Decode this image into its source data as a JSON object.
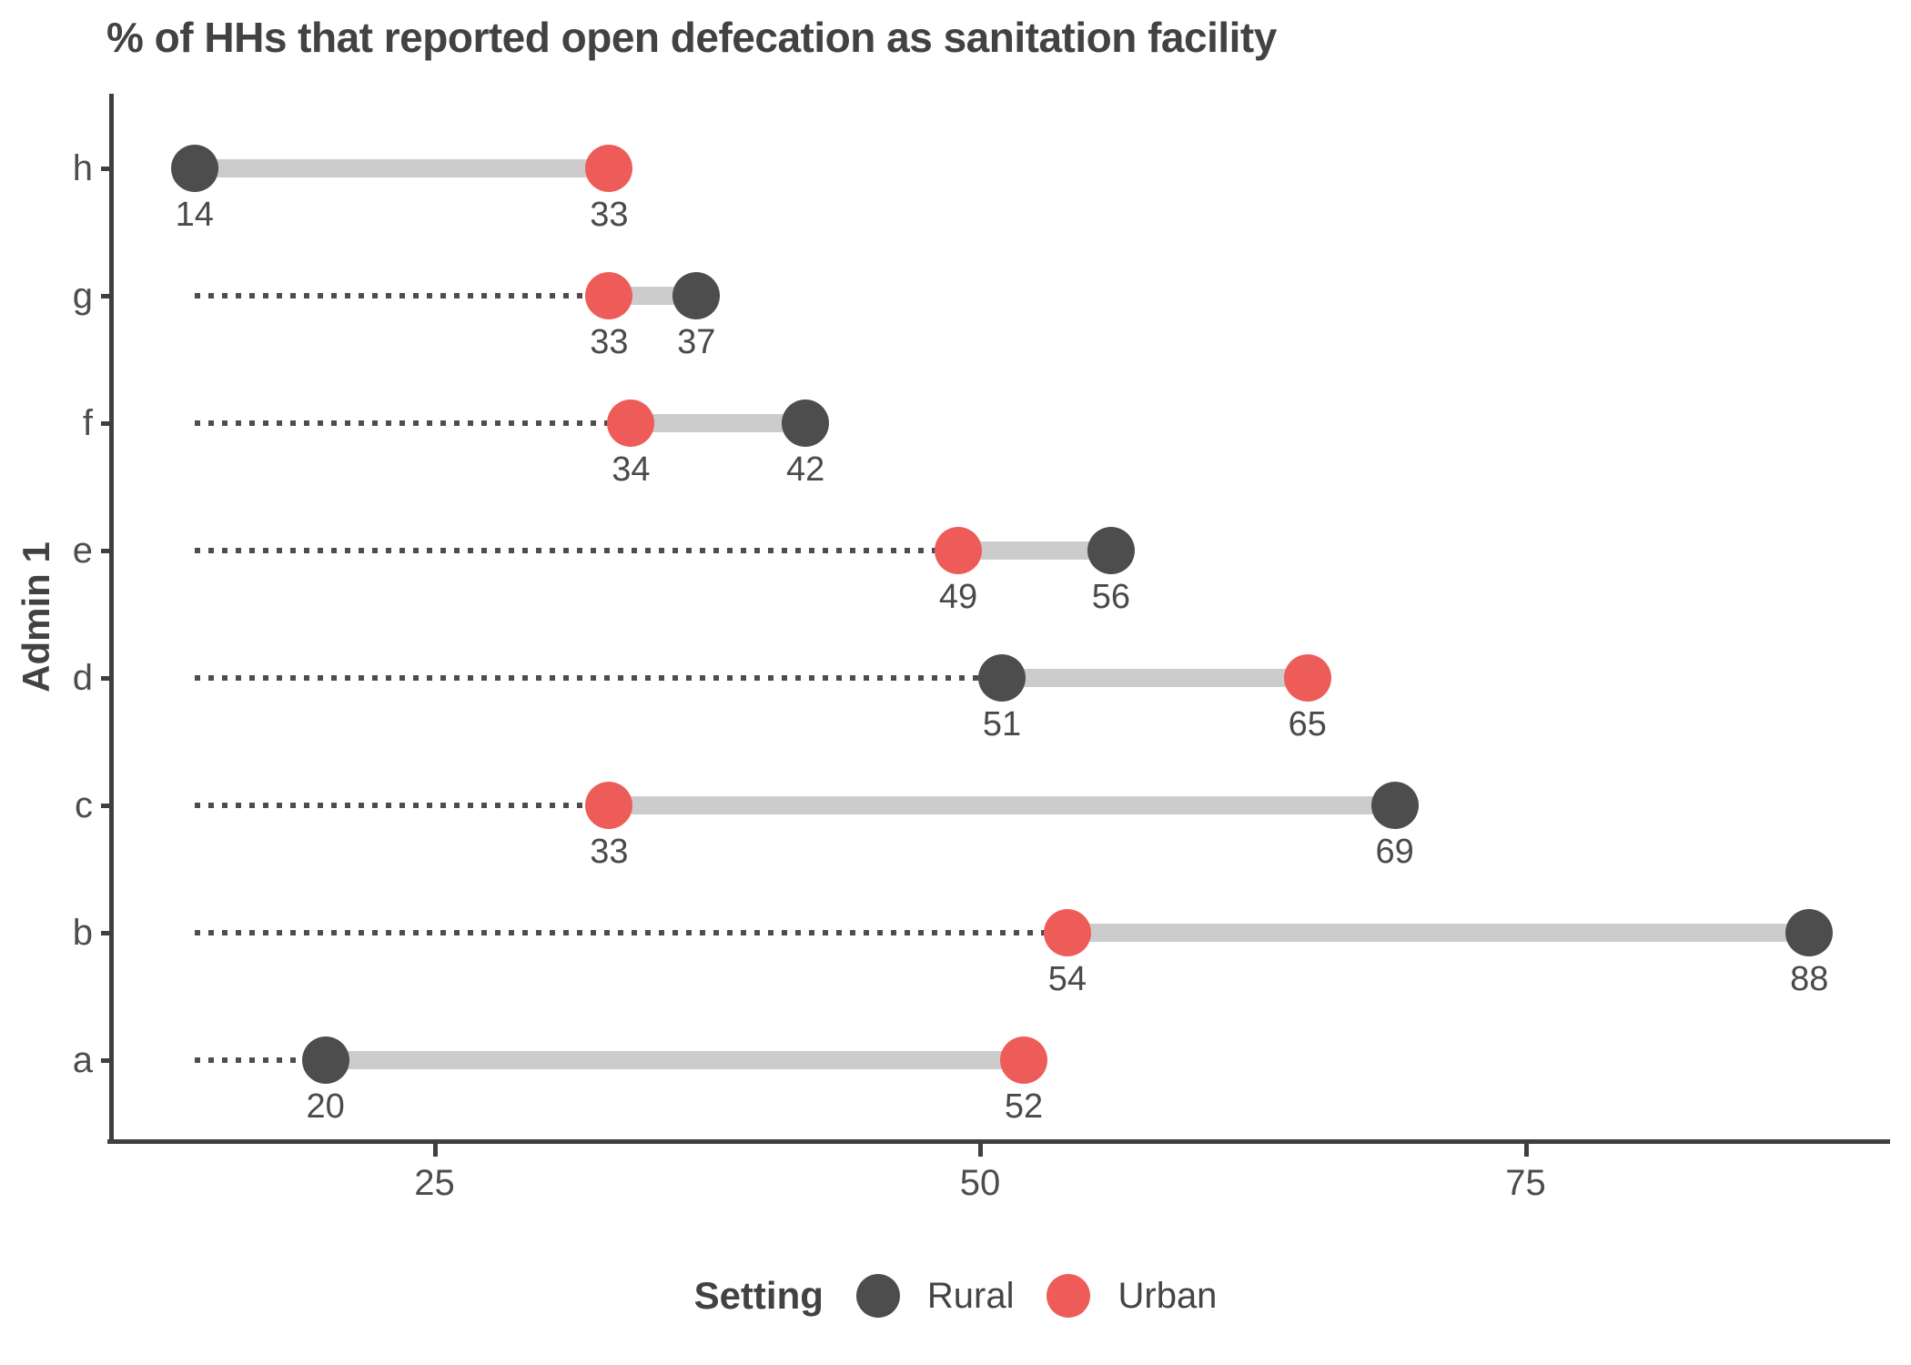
{
  "chart_data": {
    "type": "dumbbell",
    "title": "% of HHs that reported open defecation as sanitation facility",
    "ylabel": "Admin 1",
    "xlabel": "",
    "categories": [
      "h",
      "g",
      "f",
      "e",
      "d",
      "c",
      "b",
      "a"
    ],
    "series": [
      {
        "name": "Rural",
        "color": "#4d4d4d",
        "values": [
          14,
          37,
          42,
          56,
          51,
          69,
          88,
          20
        ]
      },
      {
        "name": "Urban",
        "color": "#ee5c5a",
        "values": [
          33,
          33,
          34,
          49,
          65,
          33,
          54,
          52
        ]
      }
    ],
    "point_labels": {
      "h": {
        "Rural": "14",
        "Urban": "33"
      },
      "g": {
        "Rural": "37",
        "Urban": "33"
      },
      "f": {
        "Rural": "42",
        "Urban": "34"
      },
      "e": {
        "Rural": "56",
        "Urban": "49"
      },
      "d": {
        "Rural": "51",
        "Urban": "65"
      },
      "c": {
        "Rural": "69",
        "Urban": "33"
      },
      "b": {
        "Rural": "88",
        "Urban": "54"
      },
      "a": {
        "Rural": "20",
        "Urban": "52"
      }
    },
    "x_ticks": [
      "25",
      "50",
      "75"
    ],
    "x_tick_values": [
      25,
      50,
      75
    ],
    "xlim": [
      10.3,
      91.7
    ],
    "grid": false,
    "legend_title": "Setting",
    "legend_position": "bottom",
    "connector_color": "#cccccc",
    "leader_line_color": "#4d4d4d",
    "axis_color": "#3f3f3f",
    "leader_note": "dotted leader from global minimum value (14) to leftmost dot of each row"
  }
}
